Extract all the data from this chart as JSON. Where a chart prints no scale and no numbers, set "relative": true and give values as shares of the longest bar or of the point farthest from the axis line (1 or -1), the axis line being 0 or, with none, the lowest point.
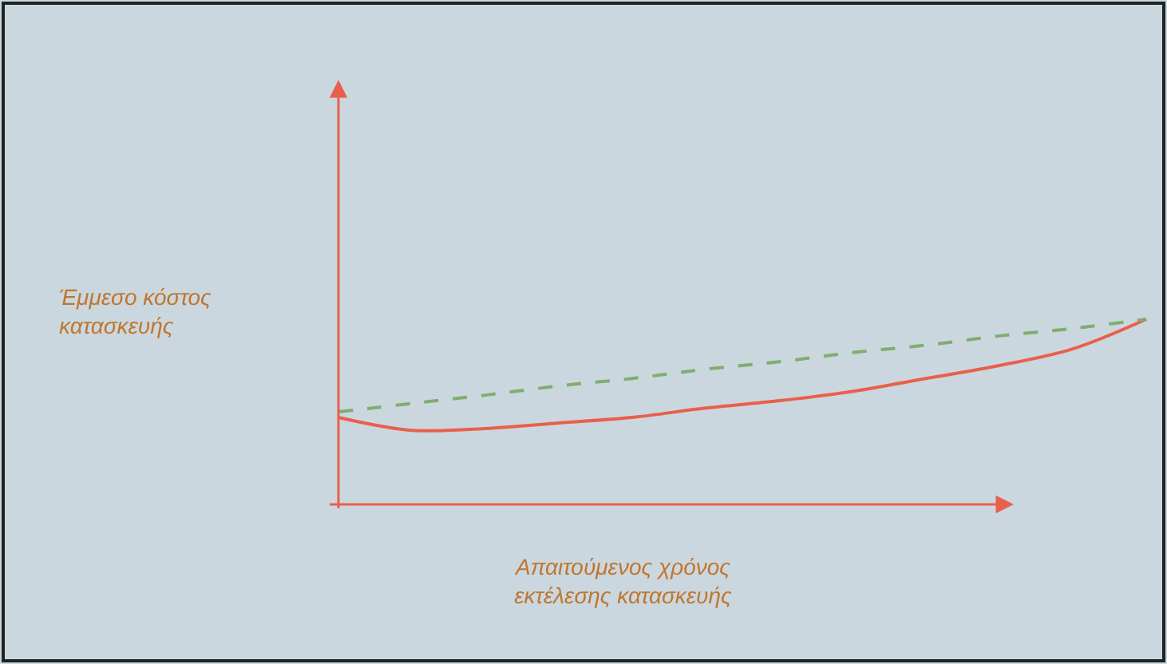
{
  "chart_data": {
    "type": "line",
    "relative": true,
    "xlabel": "Απαιτούμενος χρόνος\nεκτέλεσης κατασκευής",
    "ylabel": "Έμμεσο κόστος\nκατασκευής",
    "categories": [
      null,
      null,
      null,
      null,
      null,
      null,
      null,
      null,
      null,
      null,
      null,
      null
    ],
    "series": [
      {
        "color": "#e8604c",
        "line_style": "solid",
        "values": [
          0.47,
          0.4,
          0.41,
          0.44,
          0.47,
          0.52,
          0.56,
          0.61,
          0.68,
          0.75,
          0.84,
          1.0
        ]
      },
      {
        "color": "#7fae6e",
        "line_style": "dashed",
        "values": [
          0.5,
          0.545,
          0.59,
          0.64,
          0.68,
          0.73,
          0.77,
          0.82,
          0.86,
          0.91,
          0.95,
          1.0
        ]
      }
    ],
    "grid": false,
    "marker": "none"
  }
}
